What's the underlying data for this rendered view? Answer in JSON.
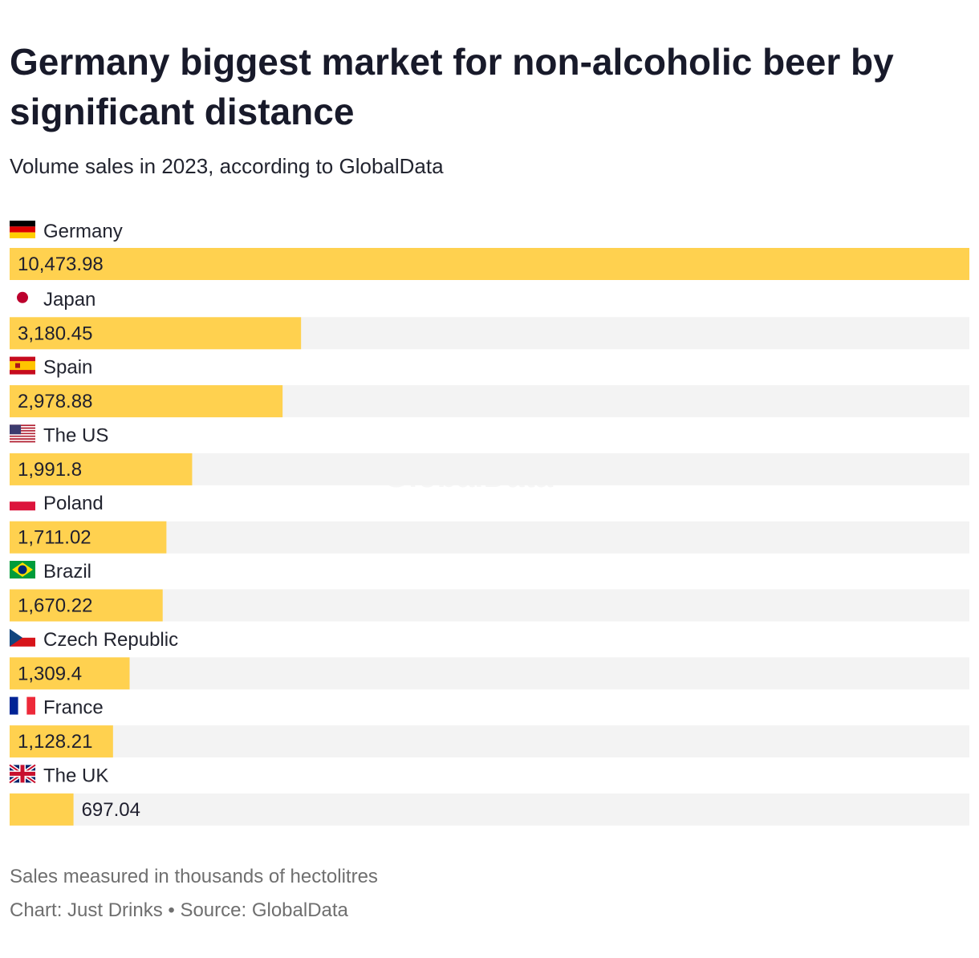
{
  "chart_data": {
    "type": "bar",
    "orientation": "horizontal",
    "title": "Germany biggest market for non-alcoholic beer by significant distance",
    "subtitle": "Volume sales in 2023, according to GlobalData",
    "categories": [
      "Germany",
      "Japan",
      "Spain",
      "The US",
      "Poland",
      "Brazil",
      "Czech Republic",
      "France",
      "The UK"
    ],
    "values": [
      10473.98,
      3180.45,
      2978.88,
      1991.8,
      1711.02,
      1670.22,
      1309.4,
      1128.21,
      697.04
    ],
    "value_labels": [
      "10,473.98",
      "3,180.45",
      "2,978.88",
      "1,991.8",
      "1,711.02",
      "1,670.22",
      "1,309.4",
      "1,128.21",
      "697.04"
    ],
    "flags": [
      "germany-flag",
      "japan-flag",
      "spain-flag",
      "usa-flag",
      "poland-flag",
      "brazil-flag",
      "czech-flag",
      "france-flag",
      "uk-flag"
    ],
    "xlim": [
      0,
      10473.98
    ],
    "bar_color": "#ffd14f",
    "track_color": "#f3f3f3",
    "note": "Sales measured in thousands of hectolitres",
    "source": "Chart: Just Drinks • Source: GlobalData",
    "watermark": "GlobalData"
  }
}
